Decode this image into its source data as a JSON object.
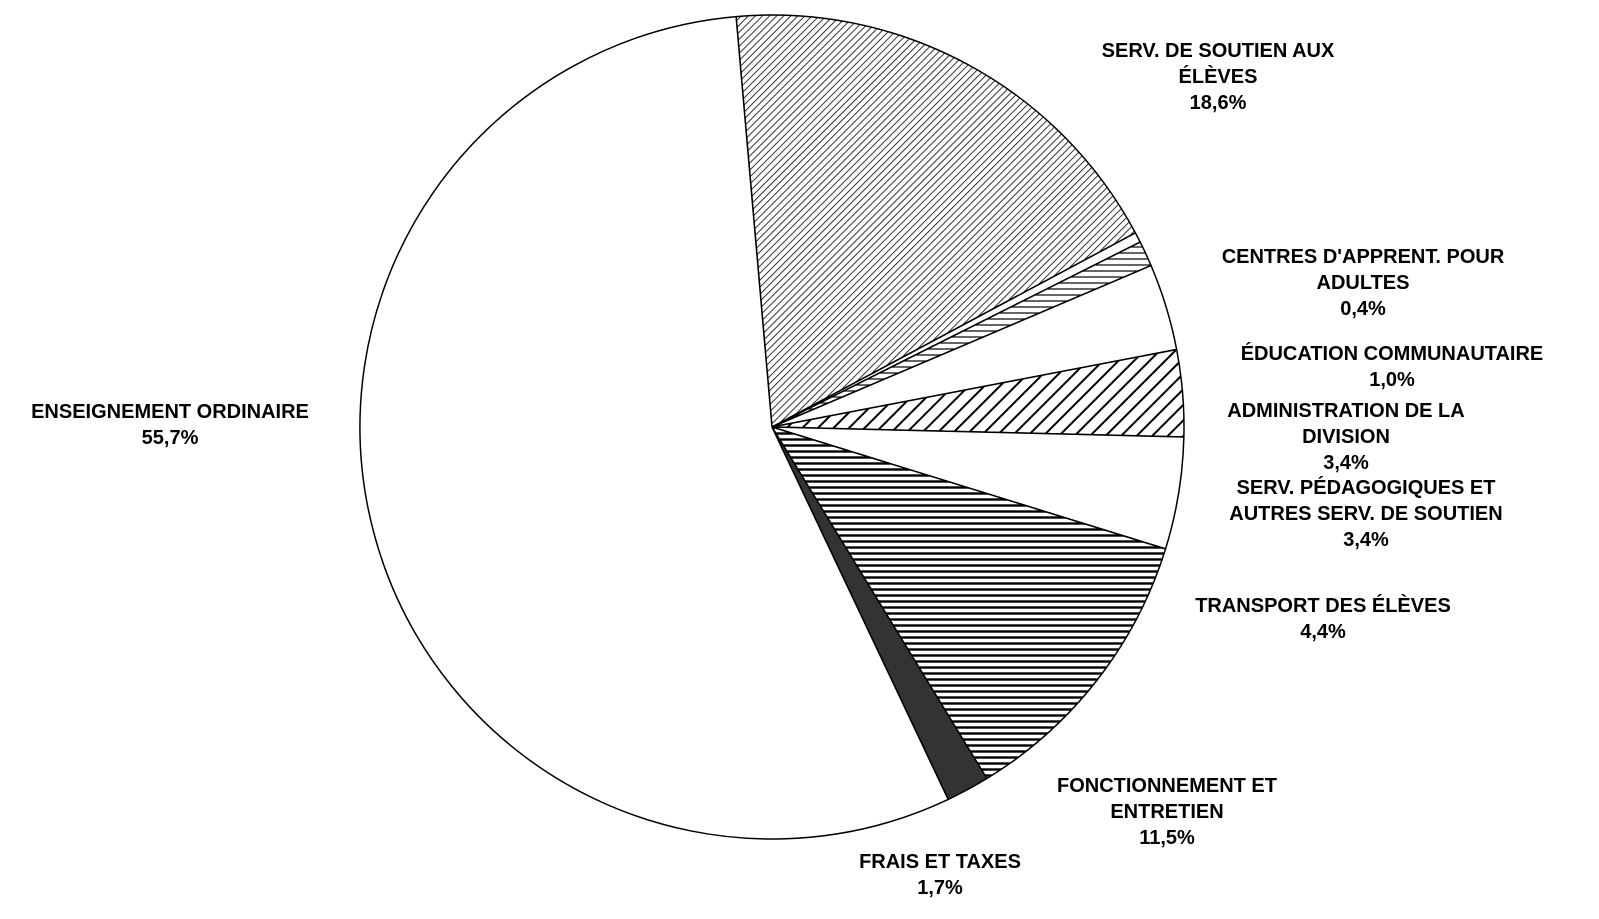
{
  "chart_data": {
    "type": "pie",
    "title": "",
    "start_angle_deg": 95,
    "direction": "clockwise",
    "slices": [
      {
        "label_lines": [
          "SERV. DE SOUTIEN AUX",
          "ÉLÈVES"
        ],
        "value_label": "18,6%",
        "value": 18.6,
        "pattern": "fine-diagonal"
      },
      {
        "label_lines": [
          "CENTRES D'APPRENT. POUR",
          "ADULTES"
        ],
        "value_label": "0,4%",
        "value": 0.4,
        "pattern": "white"
      },
      {
        "label_lines": [
          "ÉDUCATION COMMUNAUTAIRE"
        ],
        "value_label": "1,0%",
        "value": 1.0,
        "pattern": "horizontal-wide"
      },
      {
        "label_lines": [
          "ADMINISTRATION DE LA",
          "DIVISION"
        ],
        "value_label": "3,4%",
        "value": 3.4,
        "pattern": "white"
      },
      {
        "label_lines": [
          "SERV. PÉDAGOGIQUES ET",
          "AUTRES SERV. DE SOUTIEN"
        ],
        "value_label": "3,4%",
        "value": 3.4,
        "pattern": "wide-diagonal"
      },
      {
        "label_lines": [
          "TRANSPORT DES ÉLÈVES"
        ],
        "value_label": "4,4%",
        "value": 4.4,
        "pattern": "white"
      },
      {
        "label_lines": [
          "FONCTIONNEMENT ET",
          "ENTRETIEN"
        ],
        "value_label": "11,5%",
        "value": 11.5,
        "pattern": "horizontal-dense"
      },
      {
        "label_lines": [
          "FRAIS ET TAXES"
        ],
        "value_label": "1,7%",
        "value": 1.7,
        "pattern": "solid-dark"
      },
      {
        "label_lines": [
          "ENSEIGNEMENT ORDINAIRE"
        ],
        "value_label": "55,7%",
        "value": 55.7,
        "pattern": "white"
      }
    ],
    "colors": {
      "outline": "#000000",
      "background": "#ffffff",
      "dark_fill": "#333333"
    }
  }
}
